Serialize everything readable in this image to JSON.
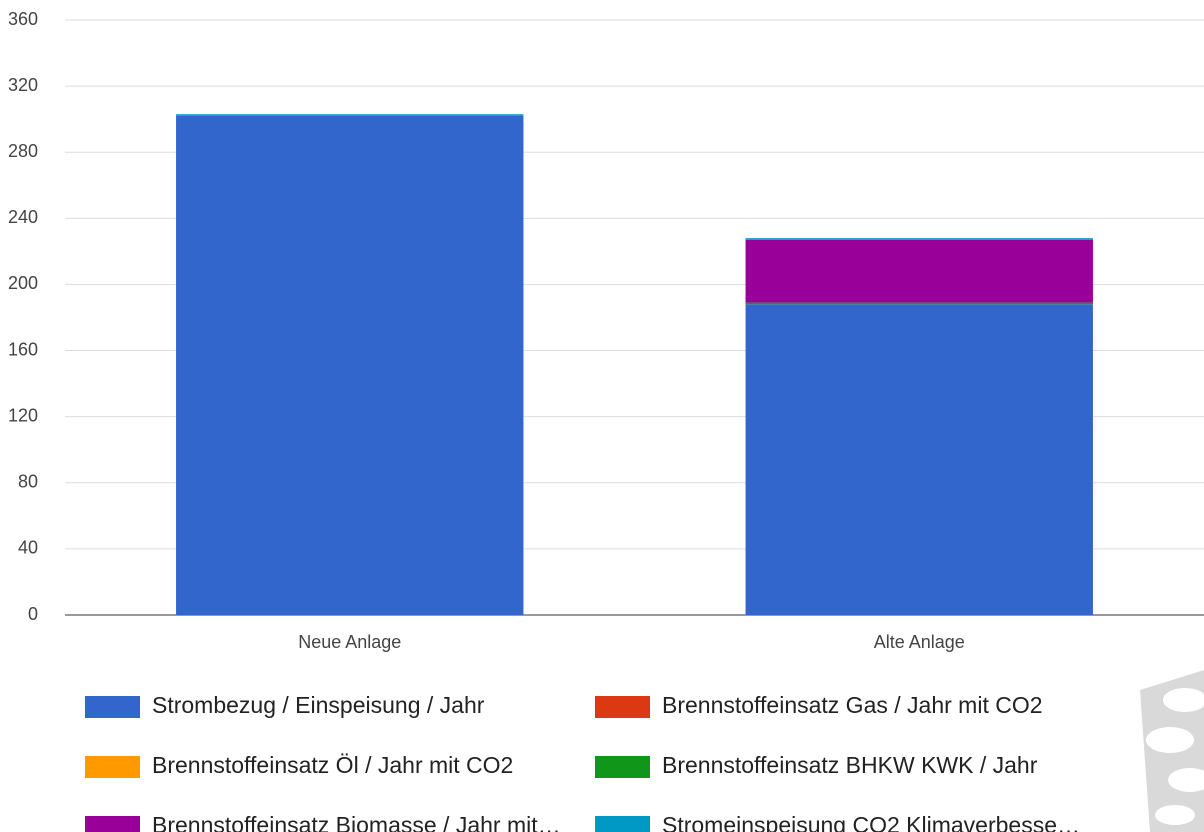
{
  "chart_data": {
    "type": "stacked_bar",
    "categories": [
      "Neue Anlage",
      "Alte Anlage"
    ],
    "series": [
      {
        "name": "Strombezug / Einspeisung / Jahr",
        "color": "#3366cc",
        "values": [
          302,
          188
        ]
      },
      {
        "name": "Brennstoffeinsatz Gas / Jahr mit CO2",
        "color": "#dc3912",
        "values": [
          0,
          0
        ]
      },
      {
        "name": "Brennstoffeinsatz Öl / Jahr mit CO2",
        "color": "#ff9900",
        "values": [
          0,
          0
        ]
      },
      {
        "name": "Brennstoffeinsatz BHKW KWK / Jahr",
        "color": "#109618",
        "values": [
          0,
          1
        ]
      },
      {
        "name": "Brennstoffeinsatz Biomasse / Jahr mit…",
        "color": "#990099",
        "values": [
          0,
          38
        ]
      },
      {
        "name": "Stromeinspeisung CO2 Klimaverbesse…",
        "color": "#0099c6",
        "values": [
          1,
          1
        ]
      }
    ],
    "ylim": [
      0,
      360
    ],
    "yticks": [
      0,
      40,
      80,
      120,
      160,
      200,
      240,
      280,
      320,
      360
    ],
    "grid": true
  }
}
